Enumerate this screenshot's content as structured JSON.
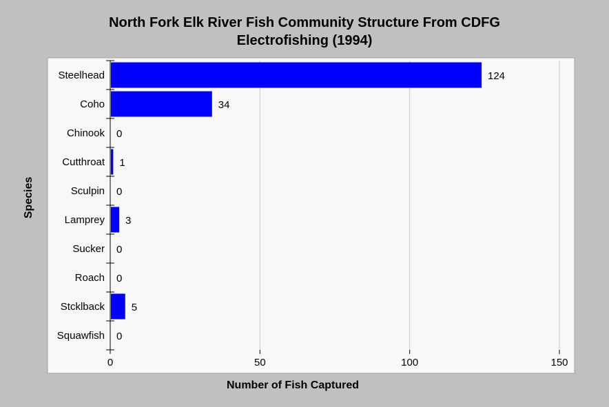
{
  "chart_data": {
    "type": "bar",
    "orientation": "horizontal",
    "title_lines": [
      "North Fork Elk River Fish Community Structure From CDFG",
      "Electrofishing (1994)"
    ],
    "xlabel": "Number of Fish Captured",
    "ylabel": "Species",
    "categories": [
      "Steelhead",
      "Coho",
      "Chinook",
      "Cutthroat",
      "Sculpin",
      "Lamprey",
      "Sucker",
      "Roach",
      "Stcklback",
      "Squawfish"
    ],
    "values": [
      124,
      34,
      0,
      1,
      0,
      3,
      0,
      0,
      5,
      0
    ],
    "xlim": [
      0,
      150
    ],
    "xticks": [
      "0",
      "50",
      "100",
      "150"
    ],
    "grid": "vertical",
    "bar_color": "#0000ff",
    "plot_background": "#f8f8f8",
    "page_background": "#c0c0c0"
  }
}
